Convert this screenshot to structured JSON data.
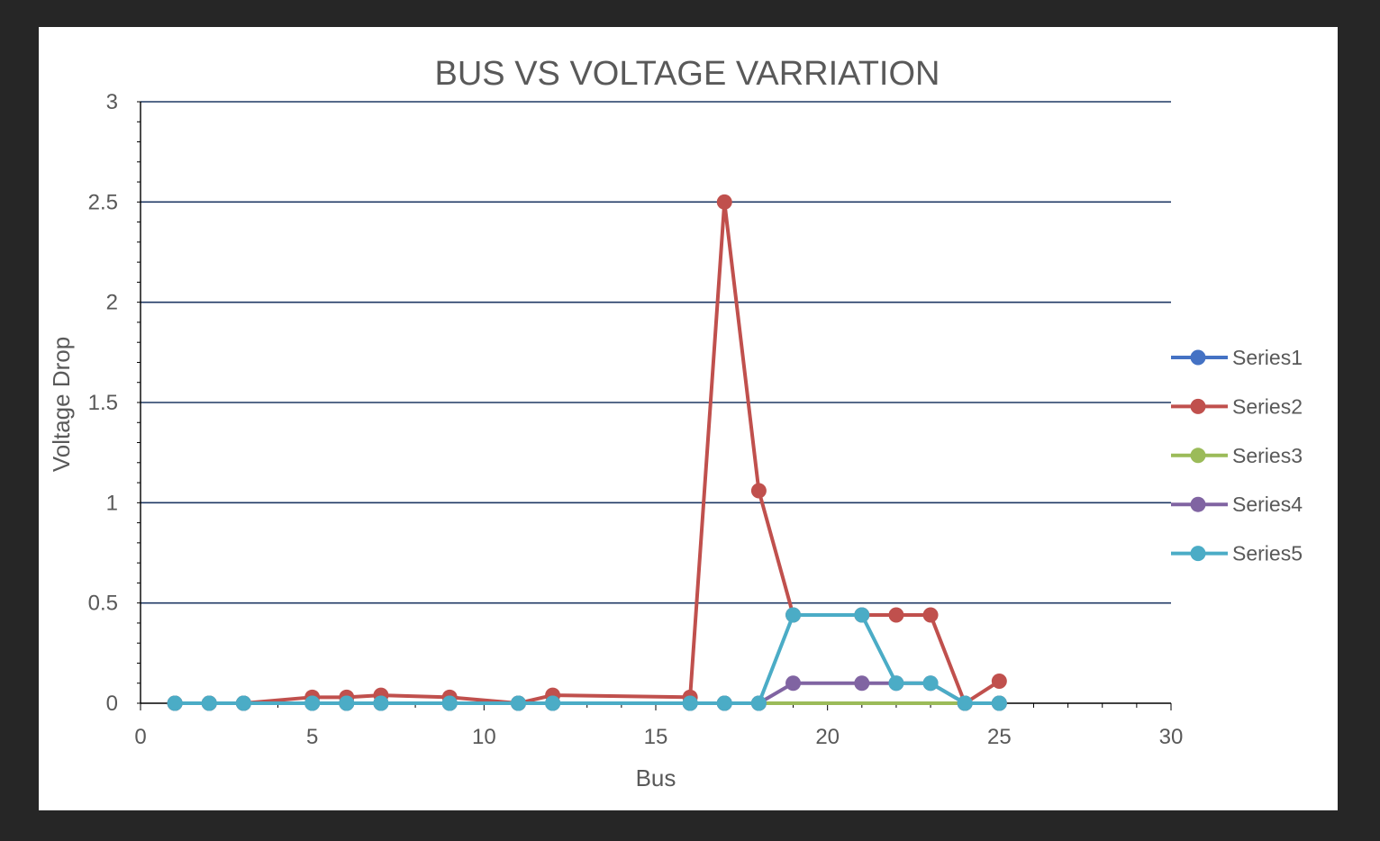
{
  "chart_data": {
    "type": "line",
    "title": "BUS VS VOLTAGE VARRIATION",
    "xlabel": "Bus",
    "ylabel": "Voltage Drop",
    "xlim": [
      0,
      30
    ],
    "ylim": [
      0,
      3
    ],
    "xticks": [
      0,
      5,
      10,
      15,
      20,
      25,
      30
    ],
    "yticks": [
      0,
      0.5,
      1,
      1.5,
      2,
      2.5,
      3
    ],
    "ytick_labels": [
      "0",
      "0.5",
      "1",
      "1.5",
      "2",
      "2.5",
      "3"
    ],
    "grid": "horizontal major",
    "legend_position": "right",
    "series": [
      {
        "name": "Series1",
        "color": "#4472c4",
        "x": [
          1,
          2,
          3,
          5,
          6,
          7,
          9,
          11,
          12,
          16,
          17,
          18,
          24,
          25
        ],
        "y": [
          0,
          0,
          0,
          0,
          0,
          0,
          0,
          0,
          0,
          0,
          0,
          0,
          0,
          0
        ]
      },
      {
        "name": "Series2",
        "color": "#c0504d",
        "x": [
          1,
          2,
          3,
          5,
          6,
          7,
          9,
          11,
          12,
          16,
          17,
          18,
          19,
          21,
          22,
          23,
          24,
          25
        ],
        "y": [
          0,
          0,
          0,
          0.03,
          0.03,
          0.04,
          0.03,
          0,
          0.04,
          0.03,
          2.5,
          1.06,
          0.44,
          0.44,
          0.44,
          0.44,
          0,
          0.11
        ]
      },
      {
        "name": "Series3",
        "color": "#9bbb59",
        "x": [
          1,
          2,
          3,
          5,
          6,
          7,
          9,
          11,
          12,
          16,
          17,
          18,
          24,
          25
        ],
        "y": [
          0,
          0,
          0,
          0,
          0,
          0,
          0,
          0,
          0,
          0,
          0,
          0,
          0,
          0
        ]
      },
      {
        "name": "Series4",
        "color": "#8064a2",
        "x": [
          1,
          2,
          3,
          5,
          6,
          7,
          9,
          11,
          12,
          16,
          17,
          18,
          19,
          21,
          22,
          23,
          24,
          25
        ],
        "y": [
          0,
          0,
          0,
          0,
          0,
          0,
          0,
          0,
          0,
          0,
          0,
          0,
          0.1,
          0.1,
          0.1,
          0.1,
          0,
          0
        ]
      },
      {
        "name": "Series5",
        "color": "#4bacc6",
        "x": [
          1,
          2,
          3,
          5,
          6,
          7,
          9,
          11,
          12,
          16,
          17,
          18,
          19,
          21,
          22,
          23,
          24,
          25
        ],
        "y": [
          0,
          0,
          0,
          0,
          0,
          0,
          0,
          0,
          0,
          0,
          0,
          0,
          0.44,
          0.44,
          0.1,
          0.1,
          0,
          0
        ]
      }
    ]
  },
  "colors": {
    "gridline": "#1f3864",
    "axis": "#000000",
    "text": "#595959",
    "frame_background": "#262626",
    "panel_background": "#ffffff"
  }
}
